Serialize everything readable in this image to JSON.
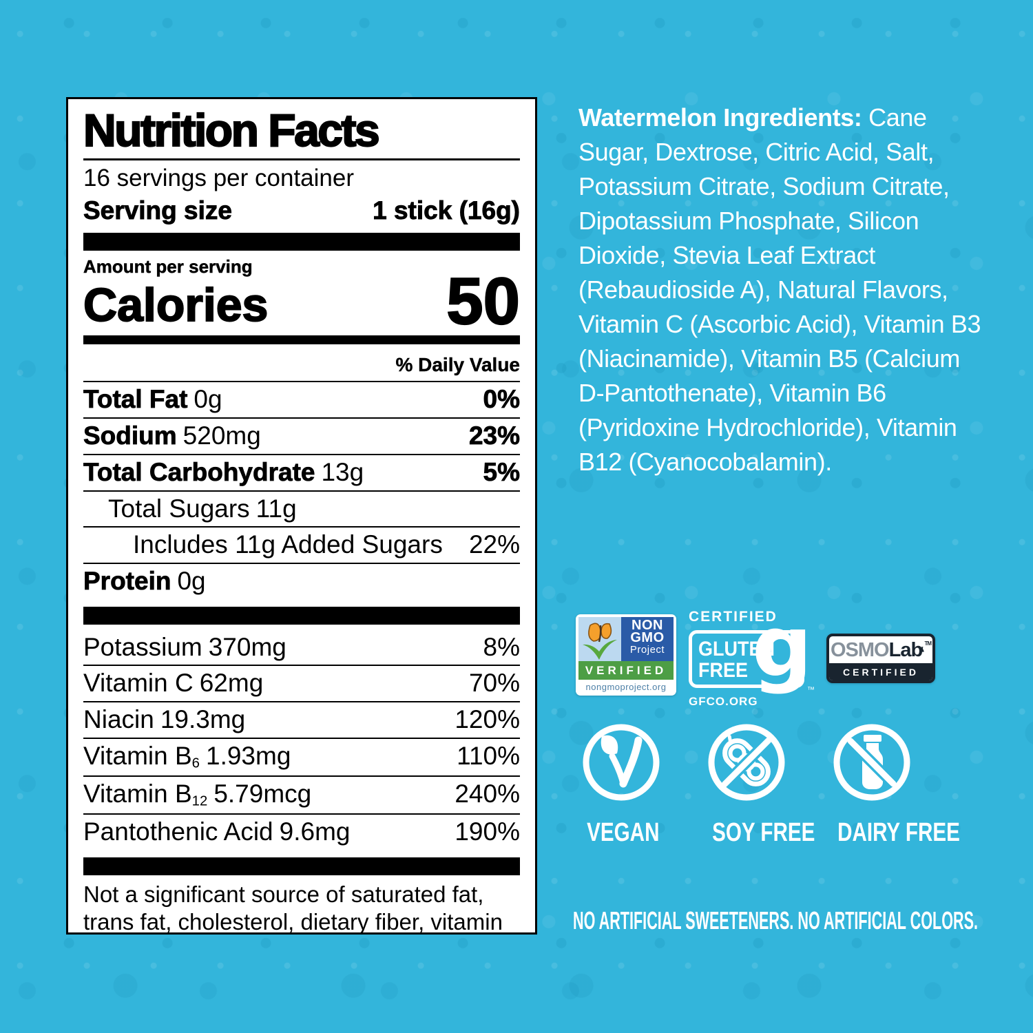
{
  "colors": {
    "background": "#33b5db",
    "panel_bg": "#ffffff",
    "panel_text": "#000000",
    "ingredients_text": "#ffffff",
    "non_gmo_blue": "#2a5ba7",
    "non_gmo_green": "#4d9e45",
    "non_gmo_sky": "#bcd9f0",
    "butterfly_orange": "#f5a02c",
    "osmo_navy": "#19242f",
    "osmo_gray": "#87919b"
  },
  "nutrition": {
    "title": "Nutrition Facts",
    "servings": "16 servings per container",
    "serving_size_label": "Serving size",
    "serving_size_value": "1 stick (16g)",
    "amount_per_serving": "Amount per serving",
    "calories_label": "Calories",
    "calories_value": "50",
    "daily_value_header": "% Daily Value",
    "rows": [
      {
        "label": "Total Fat",
        "amount": "0g",
        "dv": "0%",
        "bold": true,
        "indent": 0
      },
      {
        "label": "Sodium",
        "amount": "520mg",
        "dv": "23%",
        "bold": true,
        "indent": 0
      },
      {
        "label": "Total Carbohydrate",
        "amount": "13g",
        "dv": "5%",
        "bold": true,
        "indent": 0
      },
      {
        "label": "Total Sugars",
        "amount": "11g",
        "dv": "",
        "bold": false,
        "indent": 1
      },
      {
        "label": "Includes 11g Added Sugars",
        "amount": "",
        "dv": "22%",
        "bold": false,
        "indent": 2
      },
      {
        "label": "Protein",
        "amount": "0g",
        "dv": "",
        "bold": true,
        "indent": 0
      }
    ],
    "micronutrients": [
      {
        "label": "Potassium",
        "sub": "",
        "amount": "370mg",
        "dv": "8%"
      },
      {
        "label": "Vitamin C",
        "sub": "",
        "amount": "62mg",
        "dv": "70%"
      },
      {
        "label": "Niacin",
        "sub": "",
        "amount": "19.3mg",
        "dv": "120%"
      },
      {
        "label": "Vitamin B",
        "sub": "6",
        "amount": "1.93mg",
        "dv": "110%"
      },
      {
        "label": "Vitamin B",
        "sub": "12",
        "amount": "5.79mcg",
        "dv": "240%"
      },
      {
        "label": "Pantothenic Acid",
        "sub": "",
        "amount": "9.6mg",
        "dv": "190%"
      }
    ],
    "footnote": "Not a significant source of saturated fat, trans fat, cholesterol, dietary fiber, vitamin D, calcium and iron."
  },
  "ingredients": {
    "heading": "Watermelon Ingredients:",
    "body": "Cane Sugar, Dextrose, Citric Acid, Salt, Potassium Citrate, Sodium Citrate, Dipotassium Phosphate, Silicon Dioxide, Stevia Leaf Extract (Rebaudioside A), Natural Flavors, Vitamin C (Ascorbic Acid), Vitamin B3 (Niacinamide), Vitamin B5 (Calcium D-Pantothenate), Vitamin B6 (Pyridoxine Hydrochloride), Vitamin B12 (Cyanocobalamin)."
  },
  "badges": {
    "non_gmo": {
      "line1": "NON",
      "line2": "GMO",
      "line3": "Project",
      "verified": "VERIFIED",
      "url": "nongmoproject.org"
    },
    "gluten_free": {
      "certified": "CERTIFIED",
      "word1": "GLUTEN",
      "word2": "FREE",
      "glyph": "g",
      "tm": "™",
      "org": "GFCO.ORG"
    },
    "osmolab": {
      "brand_gray": "OSMO",
      "brand_dark": "Lab",
      "tm": "TM",
      "certified": "CERTIFIED"
    }
  },
  "dietary": {
    "items": [
      {
        "id": "vegan",
        "label": "VEGAN"
      },
      {
        "id": "soy-free",
        "label": "SOY FREE"
      },
      {
        "id": "dairy-free",
        "label": "DAIRY FREE"
      }
    ]
  },
  "footer": {
    "claim": "NO ARTIFICIAL SWEETENERS. NO ARTIFICIAL COLORS."
  }
}
